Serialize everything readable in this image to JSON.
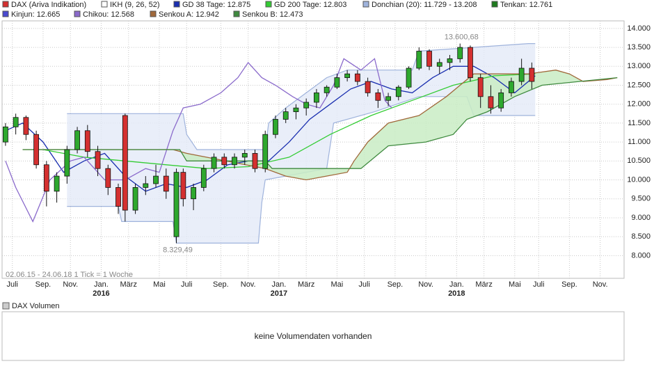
{
  "chart_data": {
    "type": "candlestick",
    "legend": [
      {
        "label": "DAX (Ariva Indikation)",
        "color": "#d43030"
      },
      {
        "label": "IKH (9, 26, 52)",
        "color": "#ffffff"
      },
      {
        "label": "GD 38 Tage: 12.875",
        "color": "#1a2fb0",
        "x": [
          1,
          6,
          12,
          18,
          24,
          30,
          36,
          42,
          48,
          54,
          60,
          66,
          72,
          78,
          84,
          90,
          96,
          102,
          108,
          114,
          120,
          126,
          132,
          138,
          144,
          150,
          156
        ],
        "values": [
          11300,
          11500,
          11000,
          10200,
          10500,
          10700,
          10100,
          9700,
          9900,
          9800,
          10000,
          10400,
          10500,
          10500,
          11000,
          11600,
          12000,
          12400,
          12600,
          12400,
          12300,
          12700,
          13000,
          13000,
          12700,
          12300,
          12750
        ]
      },
      {
        "label": "GD 200 Tage: 12.803",
        "color": "#33cc33",
        "x": [
          12,
          24,
          36,
          48,
          60,
          72,
          84,
          96,
          108,
          120,
          132,
          144,
          156
        ],
        "values": [
          10800,
          10600,
          10500,
          10400,
          10300,
          10350,
          10600,
          11200,
          11700,
          12100,
          12500,
          12750,
          12800
        ]
      },
      {
        "label": "Donchian (20): 11.729 - 13.208",
        "color": "#9fb3dc",
        "fill": "#e3eaf8",
        "x_upper": [
          19,
          53,
          54,
          57,
          77,
          78,
          83,
          95,
          101,
          120,
          122,
          154,
          156
        ],
        "upper": [
          11750,
          11750,
          11200,
          10800,
          10800,
          11500,
          11900,
          12700,
          12900,
          12900,
          13400,
          13600,
          13600
        ],
        "x_lower": [
          19,
          34,
          35,
          50,
          51,
          75,
          76,
          77,
          95,
          97,
          109,
          122,
          136,
          138,
          156
        ],
        "lower": [
          9300,
          9300,
          8900,
          8900,
          8330,
          8330,
          9400,
          10000,
          10300,
          11500,
          11800,
          12200,
          12200,
          11700,
          11700
        ]
      },
      {
        "label": "Tenkan: 12.761",
        "color": "#1e7a1e"
      },
      {
        "label": "Kinjun: 12.665",
        "color": "#4a4ad0"
      },
      {
        "label": "Chikou: 12.568",
        "color": "#8a6acb",
        "x": [
          1,
          4,
          9,
          14,
          20,
          24,
          30,
          36,
          42,
          46,
          50,
          53,
          58,
          64,
          69,
          72,
          76,
          80,
          85,
          89,
          93,
          97,
          100,
          105,
          109,
          112,
          114
        ],
        "values": [
          10500,
          9800,
          8900,
          10000,
          10500,
          10600,
          10000,
          10000,
          10300,
          10200,
          11300,
          11900,
          12000,
          12300,
          12700,
          13100,
          12700,
          12500,
          12200,
          12000,
          11900,
          12500,
          13200,
          12900,
          13200,
          12100,
          11900
        ]
      },
      {
        "label": "Senkou A: 12.942",
        "color": "#a0683a",
        "x": [
          6,
          50,
          54,
          77,
          83,
          89,
          101,
          103,
          107,
          113,
          122,
          130,
          138,
          154,
          162,
          166,
          170,
          177,
          180
        ],
        "values": [
          10800,
          10800,
          10700,
          10300,
          10100,
          10000,
          10200,
          10500,
          11000,
          11500,
          11700,
          12200,
          12800,
          12800,
          12900,
          12800,
          12600,
          12650,
          12700
        ]
      },
      {
        "label": "Senkou B: 12.473",
        "color": "#3f8a3f",
        "x": [
          6,
          52,
          54,
          77,
          79,
          101,
          105,
          113,
          124,
          132,
          136,
          142,
          150,
          158,
          180
        ],
        "values": [
          10800,
          10800,
          10500,
          10500,
          10300,
          10300,
          10300,
          10900,
          11000,
          11200,
          11600,
          11800,
          12200,
          12500,
          12700
        ]
      }
    ],
    "cloud_color": "#c9ecc4",
    "up_color": "#2ea82e",
    "down_color": "#d43030",
    "candles": {
      "x": [
        1,
        4,
        7,
        10,
        13,
        16,
        19,
        22,
        25,
        28,
        31,
        34,
        36,
        39,
        42,
        45,
        48,
        51,
        53,
        56,
        59,
        62,
        65,
        68,
        71,
        74,
        77,
        80,
        83,
        86,
        89,
        92,
        95,
        98,
        101,
        104,
        107,
        110,
        113,
        116,
        119,
        122,
        125,
        128,
        131,
        134,
        137,
        140,
        143,
        146,
        149,
        152,
        155
      ],
      "open": [
        11000,
        11400,
        11650,
        11200,
        10400,
        9700,
        10100,
        10800,
        11300,
        10750,
        10300,
        9800,
        11700,
        9200,
        9800,
        9900,
        10100,
        8500,
        10200,
        9500,
        9800,
        10300,
        10600,
        10400,
        10600,
        10700,
        10300,
        11200,
        11600,
        11800,
        11900,
        12050,
        12300,
        12450,
        12700,
        12800,
        12600,
        12300,
        12100,
        12200,
        12450,
        12950,
        13400,
        13000,
        13100,
        13200,
        13500,
        12700,
        12200,
        11900,
        12300,
        12600,
        12950
      ],
      "high": [
        11500,
        11750,
        11700,
        11300,
        10500,
        10200,
        10900,
        11400,
        11450,
        10900,
        10400,
        9900,
        11750,
        9900,
        10100,
        10400,
        10300,
        10300,
        10300,
        9900,
        10400,
        10700,
        10700,
        10700,
        10800,
        10800,
        11300,
        11700,
        11900,
        12000,
        12150,
        12400,
        12500,
        12800,
        12900,
        12900,
        12700,
        12400,
        12300,
        12500,
        13000,
        13500,
        13450,
        13200,
        13300,
        13600.68,
        13550,
        12800,
        12500,
        12400,
        12700,
        13200,
        13100
      ],
      "low": [
        10900,
        11200,
        11050,
        10300,
        9300,
        9400,
        9900,
        10700,
        10600,
        10100,
        9600,
        9100,
        8900,
        9100,
        9600,
        9800,
        9500,
        8329.49,
        9300,
        9200,
        9700,
        10200,
        10300,
        10300,
        10400,
        10200,
        10200,
        11100,
        11500,
        11600,
        11700,
        11900,
        12200,
        12400,
        12600,
        12500,
        12200,
        11900,
        11950,
        12100,
        12400,
        12900,
        12900,
        12800,
        12900,
        13100,
        12600,
        11900,
        11750,
        11800,
        12200,
        12500,
        12400
      ],
      "close": [
        11400,
        11650,
        11200,
        10400,
        9700,
        10100,
        10800,
        11300,
        10750,
        10300,
        9800,
        9300,
        9200,
        9800,
        9900,
        10100,
        9700,
        10200,
        9500,
        9800,
        10300,
        10600,
        10400,
        10600,
        10700,
        10300,
        11200,
        11600,
        11800,
        11900,
        12050,
        12300,
        12450,
        12700,
        12800,
        12600,
        12300,
        12100,
        12200,
        12450,
        12950,
        13400,
        13000,
        13100,
        13200,
        13500,
        12700,
        12200,
        11900,
        12300,
        12600,
        12950,
        12600
      ]
    },
    "annotations": [
      {
        "text": "13.600,68",
        "x": 134,
        "y": 13600.68
      },
      {
        "text": "8.329,49",
        "x": 51,
        "y": 8329.49
      }
    ],
    "range_note": "02.06.15 - 24.06.18    1 Tick = 1 Woche",
    "xlim": [
      0,
      182
    ],
    "xticks": [
      {
        "value": 3,
        "label": "Juli"
      },
      {
        "value": 12,
        "label": "Sep."
      },
      {
        "value": 20,
        "label": "Nov."
      },
      {
        "value": 29,
        "label": "Jan.",
        "year": "2016"
      },
      {
        "value": 37,
        "label": "März"
      },
      {
        "value": 46,
        "label": "Mai"
      },
      {
        "value": 54,
        "label": "Juli"
      },
      {
        "value": 64,
        "label": "Sep."
      },
      {
        "value": 72,
        "label": "Nov."
      },
      {
        "value": 81,
        "label": "Jan.",
        "year": "2017"
      },
      {
        "value": 89,
        "label": "März"
      },
      {
        "value": 98,
        "label": "Mai"
      },
      {
        "value": 106,
        "label": "Juli"
      },
      {
        "value": 115,
        "label": "Sep."
      },
      {
        "value": 124,
        "label": "Nov."
      },
      {
        "value": 133,
        "label": "Jan.",
        "year": "2018"
      },
      {
        "value": 141,
        "label": "März"
      },
      {
        "value": 150,
        "label": "Mai"
      },
      {
        "value": 157,
        "label": "Juli"
      },
      {
        "value": 166,
        "label": "Sep."
      },
      {
        "value": 175,
        "label": "Nov."
      }
    ],
    "ylim": [
      7400,
      14200
    ],
    "yticks": [
      {
        "value": 8000,
        "label": "8.000"
      },
      {
        "value": 8500,
        "label": "8.500"
      },
      {
        "value": 9000,
        "label": "9.000"
      },
      {
        "value": 9500,
        "label": "9.500"
      },
      {
        "value": 10000,
        "label": "10.000"
      },
      {
        "value": 10500,
        "label": "10.500"
      },
      {
        "value": 11000,
        "label": "11.000"
      },
      {
        "value": 11500,
        "label": "11.500"
      },
      {
        "value": 12000,
        "label": "12.000"
      },
      {
        "value": 12500,
        "label": "12.500"
      },
      {
        "value": 13000,
        "label": "13.000"
      },
      {
        "value": 13500,
        "label": "13.500"
      },
      {
        "value": 14000,
        "label": "14.000"
      }
    ],
    "grid": true,
    "volume_panel": {
      "legend": "DAX Volumen",
      "message": "keine Volumendaten vorhanden"
    }
  }
}
